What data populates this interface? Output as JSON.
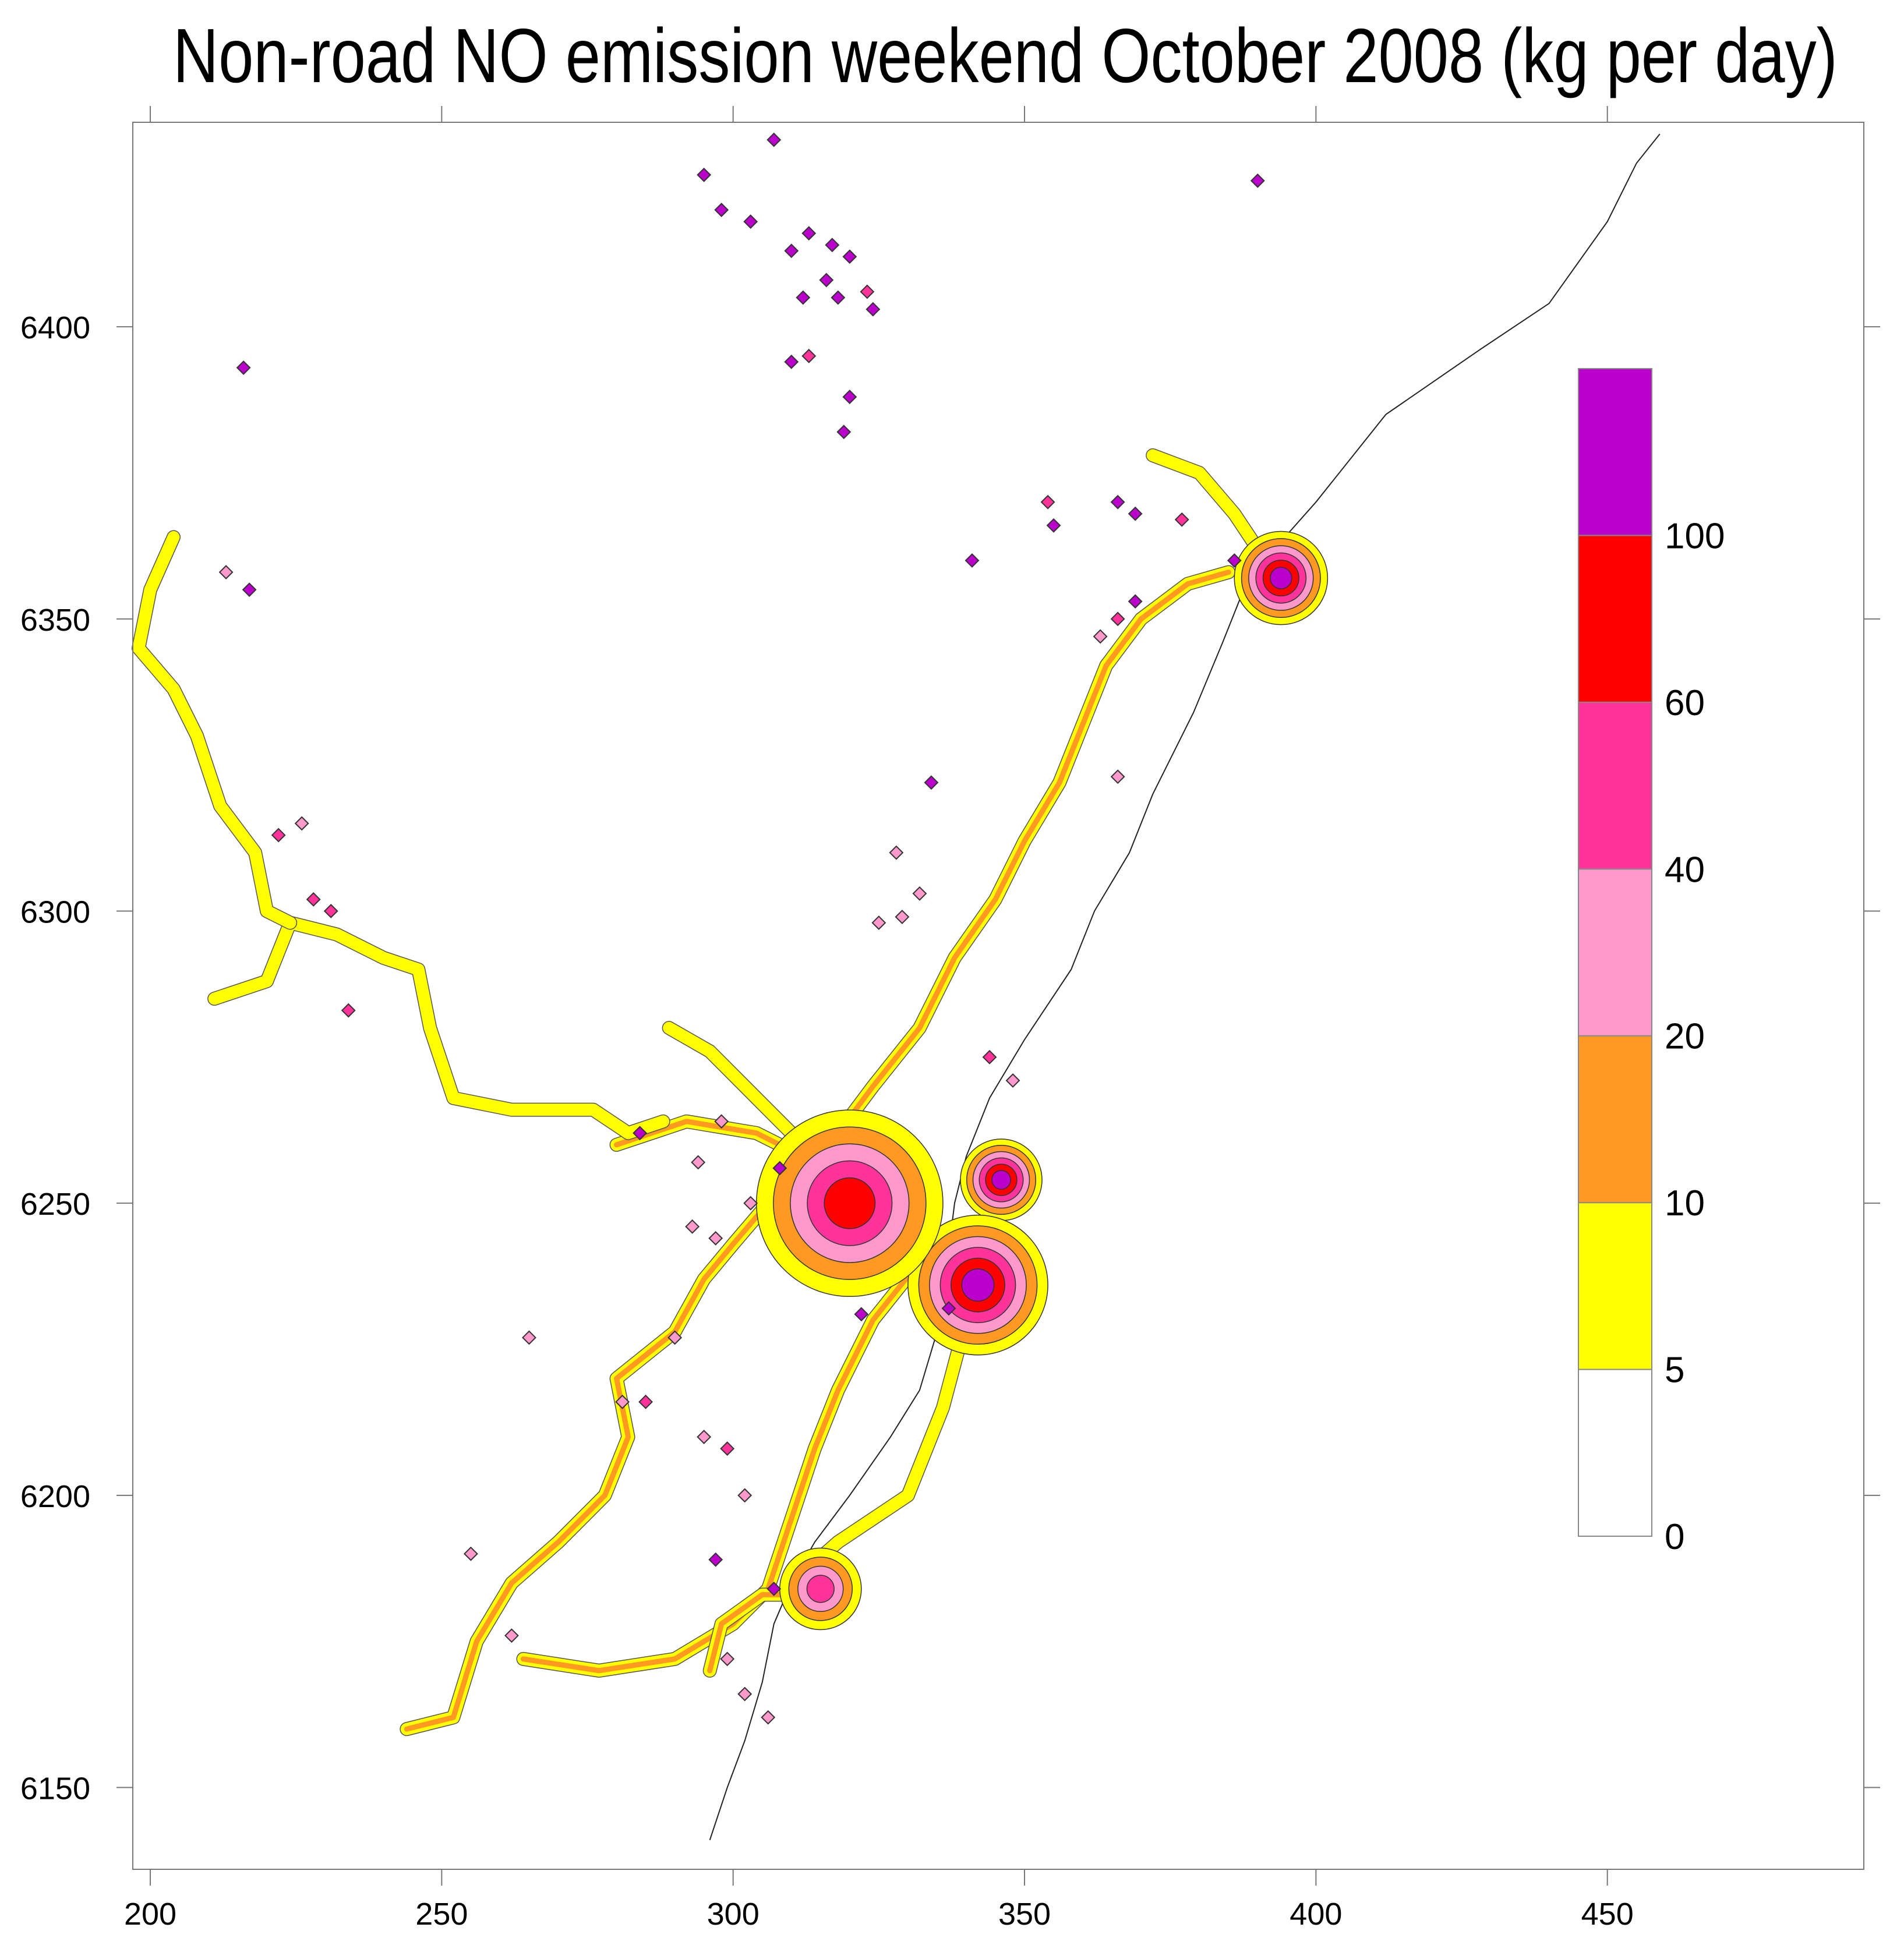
{
  "title": "Non-road NO emission weekend October 2008 (kg per day)",
  "axes": {
    "x_ticks": [
      200,
      250,
      300,
      350,
      400,
      450
    ],
    "y_ticks": [
      6150,
      6200,
      6250,
      6300,
      6350,
      6400
    ],
    "xlim": [
      197,
      494
    ],
    "ylim": [
      6136,
      6435
    ]
  },
  "legend": {
    "placement": "right",
    "bins": [
      {
        "lower": 0,
        "upper": 5,
        "color": "#FFFFFF"
      },
      {
        "lower": 5,
        "upper": 10,
        "color": "#FFFF00"
      },
      {
        "lower": 10,
        "upper": 20,
        "color": "#FF9922"
      },
      {
        "lower": 20,
        "upper": 40,
        "color": "#FF99CC"
      },
      {
        "lower": 40,
        "upper": 60,
        "color": "#FF3399"
      },
      {
        "lower": 60,
        "upper": 100,
        "color": "#FF0000"
      },
      {
        "lower": 100,
        "upper": null,
        "color": "#BB00CC"
      }
    ],
    "labels": [
      "0",
      "5",
      "10",
      "20",
      "40",
      "60",
      "100"
    ]
  },
  "chart_data": {
    "type": "heatmap",
    "title": "Non-road NO emission weekend October 2008 (kg per day)",
    "xlabel": "",
    "ylabel": "",
    "xlim": [
      197,
      494
    ],
    "ylim": [
      6136,
      6435
    ],
    "grid": false,
    "coastline": [
      [
        459,
        6433
      ],
      [
        455,
        6428
      ],
      [
        450,
        6418
      ],
      [
        440,
        6404
      ],
      [
        428,
        6396
      ],
      [
        412,
        6385
      ],
      [
        400,
        6370
      ],
      [
        392,
        6361
      ],
      [
        388,
        6356
      ],
      [
        384,
        6346
      ],
      [
        379,
        6334
      ],
      [
        372,
        6320
      ],
      [
        368,
        6310
      ],
      [
        362,
        6300
      ],
      [
        358,
        6290
      ],
      [
        350,
        6278
      ],
      [
        344,
        6268
      ],
      [
        340,
        6258
      ],
      [
        338,
        6250
      ],
      [
        337,
        6242
      ],
      [
        336,
        6234
      ],
      [
        335,
        6228
      ],
      [
        332,
        6218
      ],
      [
        327,
        6210
      ],
      [
        320,
        6200
      ],
      [
        314,
        6192
      ],
      [
        310,
        6185
      ],
      [
        307,
        6178
      ],
      [
        305,
        6168
      ],
      [
        302,
        6158
      ],
      [
        299,
        6150
      ],
      [
        296,
        6141
      ]
    ],
    "roads": [
      {
        "level": "10-20",
        "points": [
          [
            244,
            6160
          ],
          [
            252,
            6162
          ],
          [
            256,
            6175
          ],
          [
            262,
            6185
          ],
          [
            270,
            6192
          ],
          [
            278,
            6200
          ],
          [
            282,
            6210
          ],
          [
            280,
            6220
          ],
          [
            290,
            6228
          ],
          [
            295,
            6237
          ],
          [
            300,
            6243
          ],
          [
            306,
            6250
          ],
          [
            312,
            6255
          ],
          [
            320,
            6254
          ],
          [
            333,
            6252
          ]
        ]
      },
      {
        "level": "10-20",
        "points": [
          [
            264,
            6172
          ],
          [
            277,
            6170
          ],
          [
            290,
            6172
          ],
          [
            300,
            6178
          ],
          [
            306,
            6184
          ],
          [
            310,
            6196
          ],
          [
            314,
            6208
          ],
          [
            318,
            6218
          ],
          [
            324,
            6230
          ],
          [
            332,
            6240
          ]
        ]
      },
      {
        "level": "10-20",
        "points": [
          [
            280,
            6260
          ],
          [
            292,
            6264
          ],
          [
            304,
            6262
          ],
          [
            312,
            6258
          ],
          [
            318,
            6262
          ],
          [
            324,
            6270
          ],
          [
            332,
            6280
          ],
          [
            338,
            6292
          ],
          [
            345,
            6302
          ],
          [
            350,
            6312
          ],
          [
            356,
            6322
          ],
          [
            360,
            6332
          ],
          [
            364,
            6342
          ],
          [
            370,
            6350
          ],
          [
            378,
            6356
          ],
          [
            385,
            6358
          ]
        ]
      },
      {
        "level": "5-10",
        "points": [
          [
            211,
            6285
          ],
          [
            220,
            6288
          ],
          [
            224,
            6298
          ],
          [
            232,
            6296
          ],
          [
            240,
            6292
          ],
          [
            246,
            6290
          ],
          [
            248,
            6280
          ],
          [
            252,
            6268
          ],
          [
            262,
            6266
          ],
          [
            276,
            6266
          ],
          [
            282,
            6262
          ],
          [
            288,
            6264
          ]
        ]
      },
      {
        "level": "5-10",
        "points": [
          [
            204,
            6364
          ],
          [
            200,
            6355
          ],
          [
            198,
            6345
          ],
          [
            204,
            6338
          ],
          [
            208,
            6330
          ],
          [
            212,
            6318
          ],
          [
            218,
            6310
          ],
          [
            220,
            6300
          ],
          [
            224,
            6298
          ]
        ]
      },
      {
        "level": "5-10",
        "points": [
          [
            289,
            6280
          ],
          [
            296,
            6276
          ],
          [
            302,
            6270
          ],
          [
            310,
            6262
          ],
          [
            318,
            6256
          ]
        ]
      },
      {
        "level": "5-10",
        "points": [
          [
            372,
            6378
          ],
          [
            380,
            6375
          ],
          [
            386,
            6368
          ],
          [
            390,
            6362
          ],
          [
            392,
            6358
          ]
        ]
      },
      {
        "level": "5-10",
        "points": [
          [
            310,
            6185
          ],
          [
            318,
            6192
          ],
          [
            330,
            6200
          ],
          [
            336,
            6215
          ],
          [
            340,
            6230
          ]
        ]
      },
      {
        "level": "10-20",
        "points": [
          [
            296,
            6170
          ],
          [
            298,
            6178
          ],
          [
            305,
            6183
          ],
          [
            312,
            6183
          ]
        ]
      }
    ],
    "hotspots": [
      {
        "x": 394,
        "y": 6357,
        "peak_level": ">100",
        "radius": 8
      },
      {
        "x": 346,
        "y": 6254,
        "peak_level": ">100",
        "radius": 7
      },
      {
        "x": 342,
        "y": 6236,
        "peak_level": ">100",
        "radius": 12
      },
      {
        "x": 315,
        "y": 6184,
        "peak_level": "40-60",
        "radius": 7
      },
      {
        "x": 320,
        "y": 6250,
        "peak_level": "60-100",
        "radius": 16
      }
    ],
    "points": [
      {
        "x": 307,
        "y": 6432,
        "level": ">100"
      },
      {
        "x": 295,
        "y": 6426,
        "level": ">100"
      },
      {
        "x": 298,
        "y": 6420,
        "level": ">100"
      },
      {
        "x": 303,
        "y": 6418,
        "level": ">100"
      },
      {
        "x": 310,
        "y": 6413,
        "level": ">100"
      },
      {
        "x": 313,
        "y": 6416,
        "level": ">100"
      },
      {
        "x": 317,
        "y": 6414,
        "level": ">100"
      },
      {
        "x": 320,
        "y": 6412,
        "level": ">100"
      },
      {
        "x": 316,
        "y": 6408,
        "level": ">100"
      },
      {
        "x": 312,
        "y": 6405,
        "level": ">100"
      },
      {
        "x": 318,
        "y": 6405,
        "level": ">100"
      },
      {
        "x": 323,
        "y": 6406,
        "level": "40-60"
      },
      {
        "x": 324,
        "y": 6403,
        "level": ">100"
      },
      {
        "x": 310,
        "y": 6394,
        "level": ">100"
      },
      {
        "x": 313,
        "y": 6395,
        "level": "40-60"
      },
      {
        "x": 320,
        "y": 6388,
        "level": ">100"
      },
      {
        "x": 319,
        "y": 6382,
        "level": ">100"
      },
      {
        "x": 390,
        "y": 6425,
        "level": ">100"
      },
      {
        "x": 216,
        "y": 6393,
        "level": ">100"
      },
      {
        "x": 213,
        "y": 6358,
        "level": "20-40"
      },
      {
        "x": 217,
        "y": 6355,
        "level": ">100"
      },
      {
        "x": 222,
        "y": 6313,
        "level": "40-60"
      },
      {
        "x": 226,
        "y": 6315,
        "level": "20-40"
      },
      {
        "x": 228,
        "y": 6302,
        "level": "40-60"
      },
      {
        "x": 231,
        "y": 6300,
        "level": "40-60"
      },
      {
        "x": 234,
        "y": 6283,
        "level": "40-60"
      },
      {
        "x": 341,
        "y": 6360,
        "level": ">100"
      },
      {
        "x": 355,
        "y": 6366,
        "level": ">100"
      },
      {
        "x": 354,
        "y": 6370,
        "level": "40-60"
      },
      {
        "x": 366,
        "y": 6370,
        "level": ">100"
      },
      {
        "x": 369,
        "y": 6368,
        "level": ">100"
      },
      {
        "x": 377,
        "y": 6367,
        "level": "40-60"
      },
      {
        "x": 386,
        "y": 6360,
        "level": ">100"
      },
      {
        "x": 369,
        "y": 6353,
        "level": ">100"
      },
      {
        "x": 366,
        "y": 6350,
        "level": "40-60"
      },
      {
        "x": 363,
        "y": 6347,
        "level": "20-40"
      },
      {
        "x": 366,
        "y": 6323,
        "level": "20-40"
      },
      {
        "x": 334,
        "y": 6322,
        "level": ">100"
      },
      {
        "x": 328,
        "y": 6310,
        "level": "20-40"
      },
      {
        "x": 332,
        "y": 6303,
        "level": "20-40"
      },
      {
        "x": 325,
        "y": 6298,
        "level": "20-40"
      },
      {
        "x": 329,
        "y": 6299,
        "level": "20-40"
      },
      {
        "x": 344,
        "y": 6275,
        "level": "40-60"
      },
      {
        "x": 348,
        "y": 6271,
        "level": "20-40"
      },
      {
        "x": 298,
        "y": 6264,
        "level": "20-40"
      },
      {
        "x": 284,
        "y": 6262,
        "level": ">100"
      },
      {
        "x": 294,
        "y": 6257,
        "level": "20-40"
      },
      {
        "x": 308,
        "y": 6256,
        "level": ">100"
      },
      {
        "x": 303,
        "y": 6250,
        "level": "20-40"
      },
      {
        "x": 297,
        "y": 6244,
        "level": "20-40"
      },
      {
        "x": 293,
        "y": 6246,
        "level": "20-40"
      },
      {
        "x": 265,
        "y": 6227,
        "level": "20-40"
      },
      {
        "x": 290,
        "y": 6227,
        "level": "20-40"
      },
      {
        "x": 281,
        "y": 6216,
        "level": "20-40"
      },
      {
        "x": 285,
        "y": 6216,
        "level": "40-60"
      },
      {
        "x": 295,
        "y": 6210,
        "level": "20-40"
      },
      {
        "x": 299,
        "y": 6208,
        "level": "40-60"
      },
      {
        "x": 302,
        "y": 6200,
        "level": "20-40"
      },
      {
        "x": 255,
        "y": 6190,
        "level": "20-40"
      },
      {
        "x": 297,
        "y": 6189,
        "level": ">100"
      },
      {
        "x": 307,
        "y": 6184,
        "level": ">100"
      },
      {
        "x": 262,
        "y": 6176,
        "level": "20-40"
      },
      {
        "x": 299,
        "y": 6172,
        "level": "20-40"
      },
      {
        "x": 302,
        "y": 6166,
        "level": "20-40"
      },
      {
        "x": 306,
        "y": 6162,
        "level": "20-40"
      },
      {
        "x": 322,
        "y": 6231,
        "level": ">100"
      },
      {
        "x": 337,
        "y": 6232,
        "level": ">100"
      }
    ]
  }
}
